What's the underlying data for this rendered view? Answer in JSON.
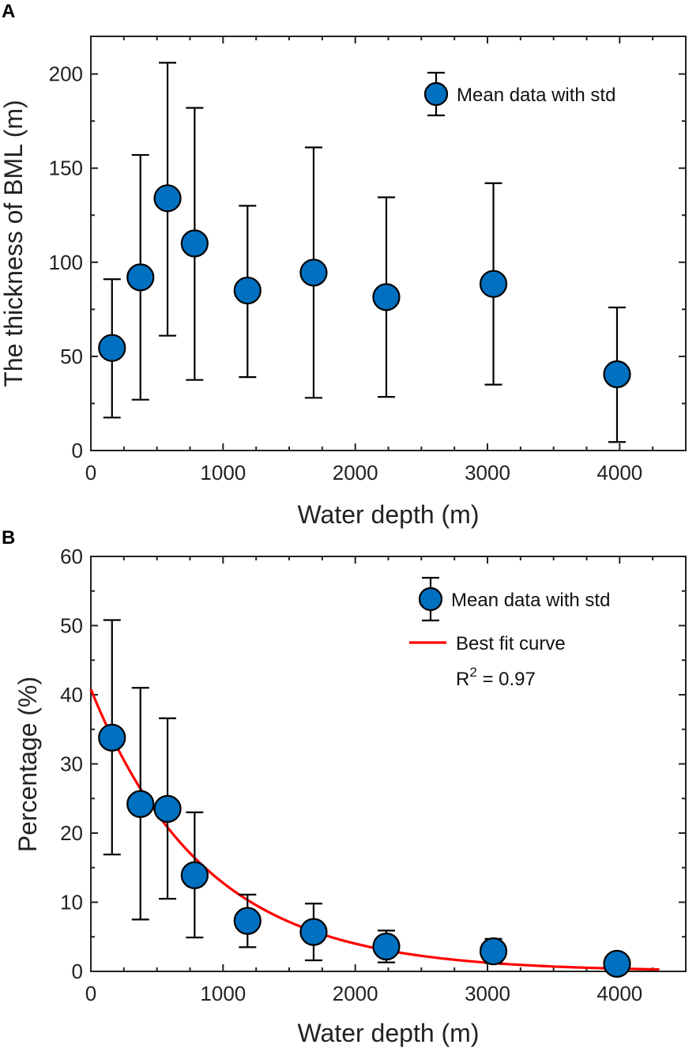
{
  "colors": {
    "marker_fill": "#0070C0",
    "fit_line": "#FF0000",
    "axis": "#222222"
  },
  "chart_data": [
    {
      "panel": "A",
      "type": "scatter",
      "xlabel": "Water depth (m)",
      "ylabel": "The thickness of BML (m)",
      "xlim": [
        0,
        4500
      ],
      "ylim": [
        0,
        220
      ],
      "xticks": [
        0,
        1000,
        2000,
        3000,
        4000
      ],
      "yticks": [
        0,
        50,
        100,
        150,
        200
      ],
      "legend": {
        "placement": "top-right",
        "marker_label": "Mean data with std"
      },
      "series": [
        {
          "name": "Mean data with std",
          "x": [
            160,
            375,
            580,
            785,
            1185,
            1685,
            2235,
            3045,
            3980
          ],
          "y": [
            54.5,
            92,
            134,
            110,
            85,
            94.5,
            81.5,
            88.5,
            40.5
          ],
          "err_low": [
            17.5,
            27,
            61,
            37.5,
            39,
            28,
            28.5,
            35,
            4.5
          ],
          "err_high": [
            91,
            157,
            206,
            182,
            130,
            161,
            134.5,
            142,
            76
          ]
        }
      ]
    },
    {
      "panel": "B",
      "type": "scatter",
      "xlabel": "Water depth (m)",
      "ylabel": "Percentage (%)",
      "xlim": [
        0,
        4500
      ],
      "ylim": [
        0,
        60
      ],
      "xticks": [
        0,
        1000,
        2000,
        3000,
        4000
      ],
      "yticks": [
        0,
        10,
        20,
        30,
        40,
        50,
        60
      ],
      "legend": {
        "placement": "top-right",
        "marker_label": "Mean data with std",
        "line_label": "Best fit curve",
        "r2_prefix": "R",
        "r2_sup": "2",
        "r2_value": " = 0.97"
      },
      "series": [
        {
          "name": "Mean data with std",
          "x": [
            160,
            375,
            580,
            785,
            1185,
            1685,
            2235,
            3045,
            3980
          ],
          "y": [
            33.8,
            24.2,
            23.5,
            13.9,
            7.3,
            5.7,
            3.6,
            2.9,
            1.1
          ],
          "err_low": [
            16.9,
            7.5,
            10.5,
            4.9,
            3.5,
            1.6,
            1.3,
            1.2,
            0.4
          ],
          "err_high": [
            50.8,
            41,
            36.6,
            23,
            11.1,
            9.8,
            5.9,
            4.7,
            1.9
          ]
        }
      ],
      "fit": {
        "name": "Best fit curve",
        "model": "a*exp(-b*x)",
        "a": 40.8,
        "b": 0.00116,
        "x_range": [
          0,
          4300
        ]
      }
    }
  ]
}
